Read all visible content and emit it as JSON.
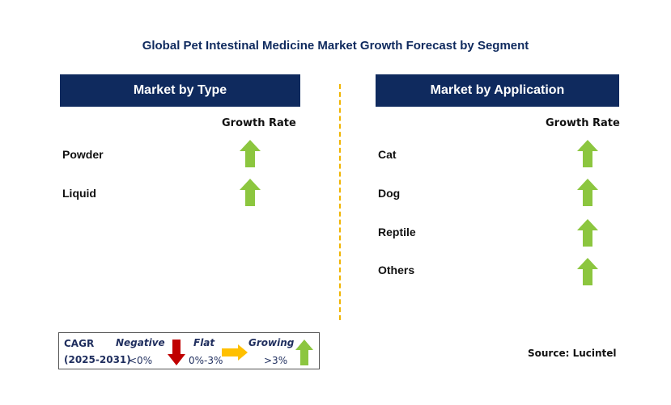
{
  "title": "Global Pet Intestinal Medicine Market Growth Forecast by Segment",
  "left_panel": {
    "header": "Market by Type",
    "column_label": "Growth Rate",
    "rows": [
      {
        "label": "Powder",
        "trend": "growing"
      },
      {
        "label": "Liquid",
        "trend": "growing"
      }
    ]
  },
  "right_panel": {
    "header": "Market by Application",
    "column_label": "Growth Rate",
    "rows": [
      {
        "label": "Cat",
        "trend": "growing"
      },
      {
        "label": "Dog",
        "trend": "growing"
      },
      {
        "label": "Reptile",
        "trend": "growing"
      },
      {
        "label": "Others",
        "trend": "growing"
      }
    ]
  },
  "legend": {
    "cagr_label": "CAGR",
    "period": "(2025-2031)",
    "negative": {
      "label": "Negative",
      "range": "<0%",
      "icon": "down-arrow-icon"
    },
    "flat": {
      "label": "Flat",
      "range": "0%-3%",
      "icon": "right-arrow-icon"
    },
    "growing": {
      "label": "Growing",
      "range": ">3%",
      "icon": "up-arrow-icon"
    }
  },
  "source": "Source: Lucintel",
  "colors": {
    "header_bg": "#0f2a5e",
    "growing": "#8cc63f",
    "negative": "#c00000",
    "flat": "#ffc000",
    "divider": "#f0b400"
  }
}
